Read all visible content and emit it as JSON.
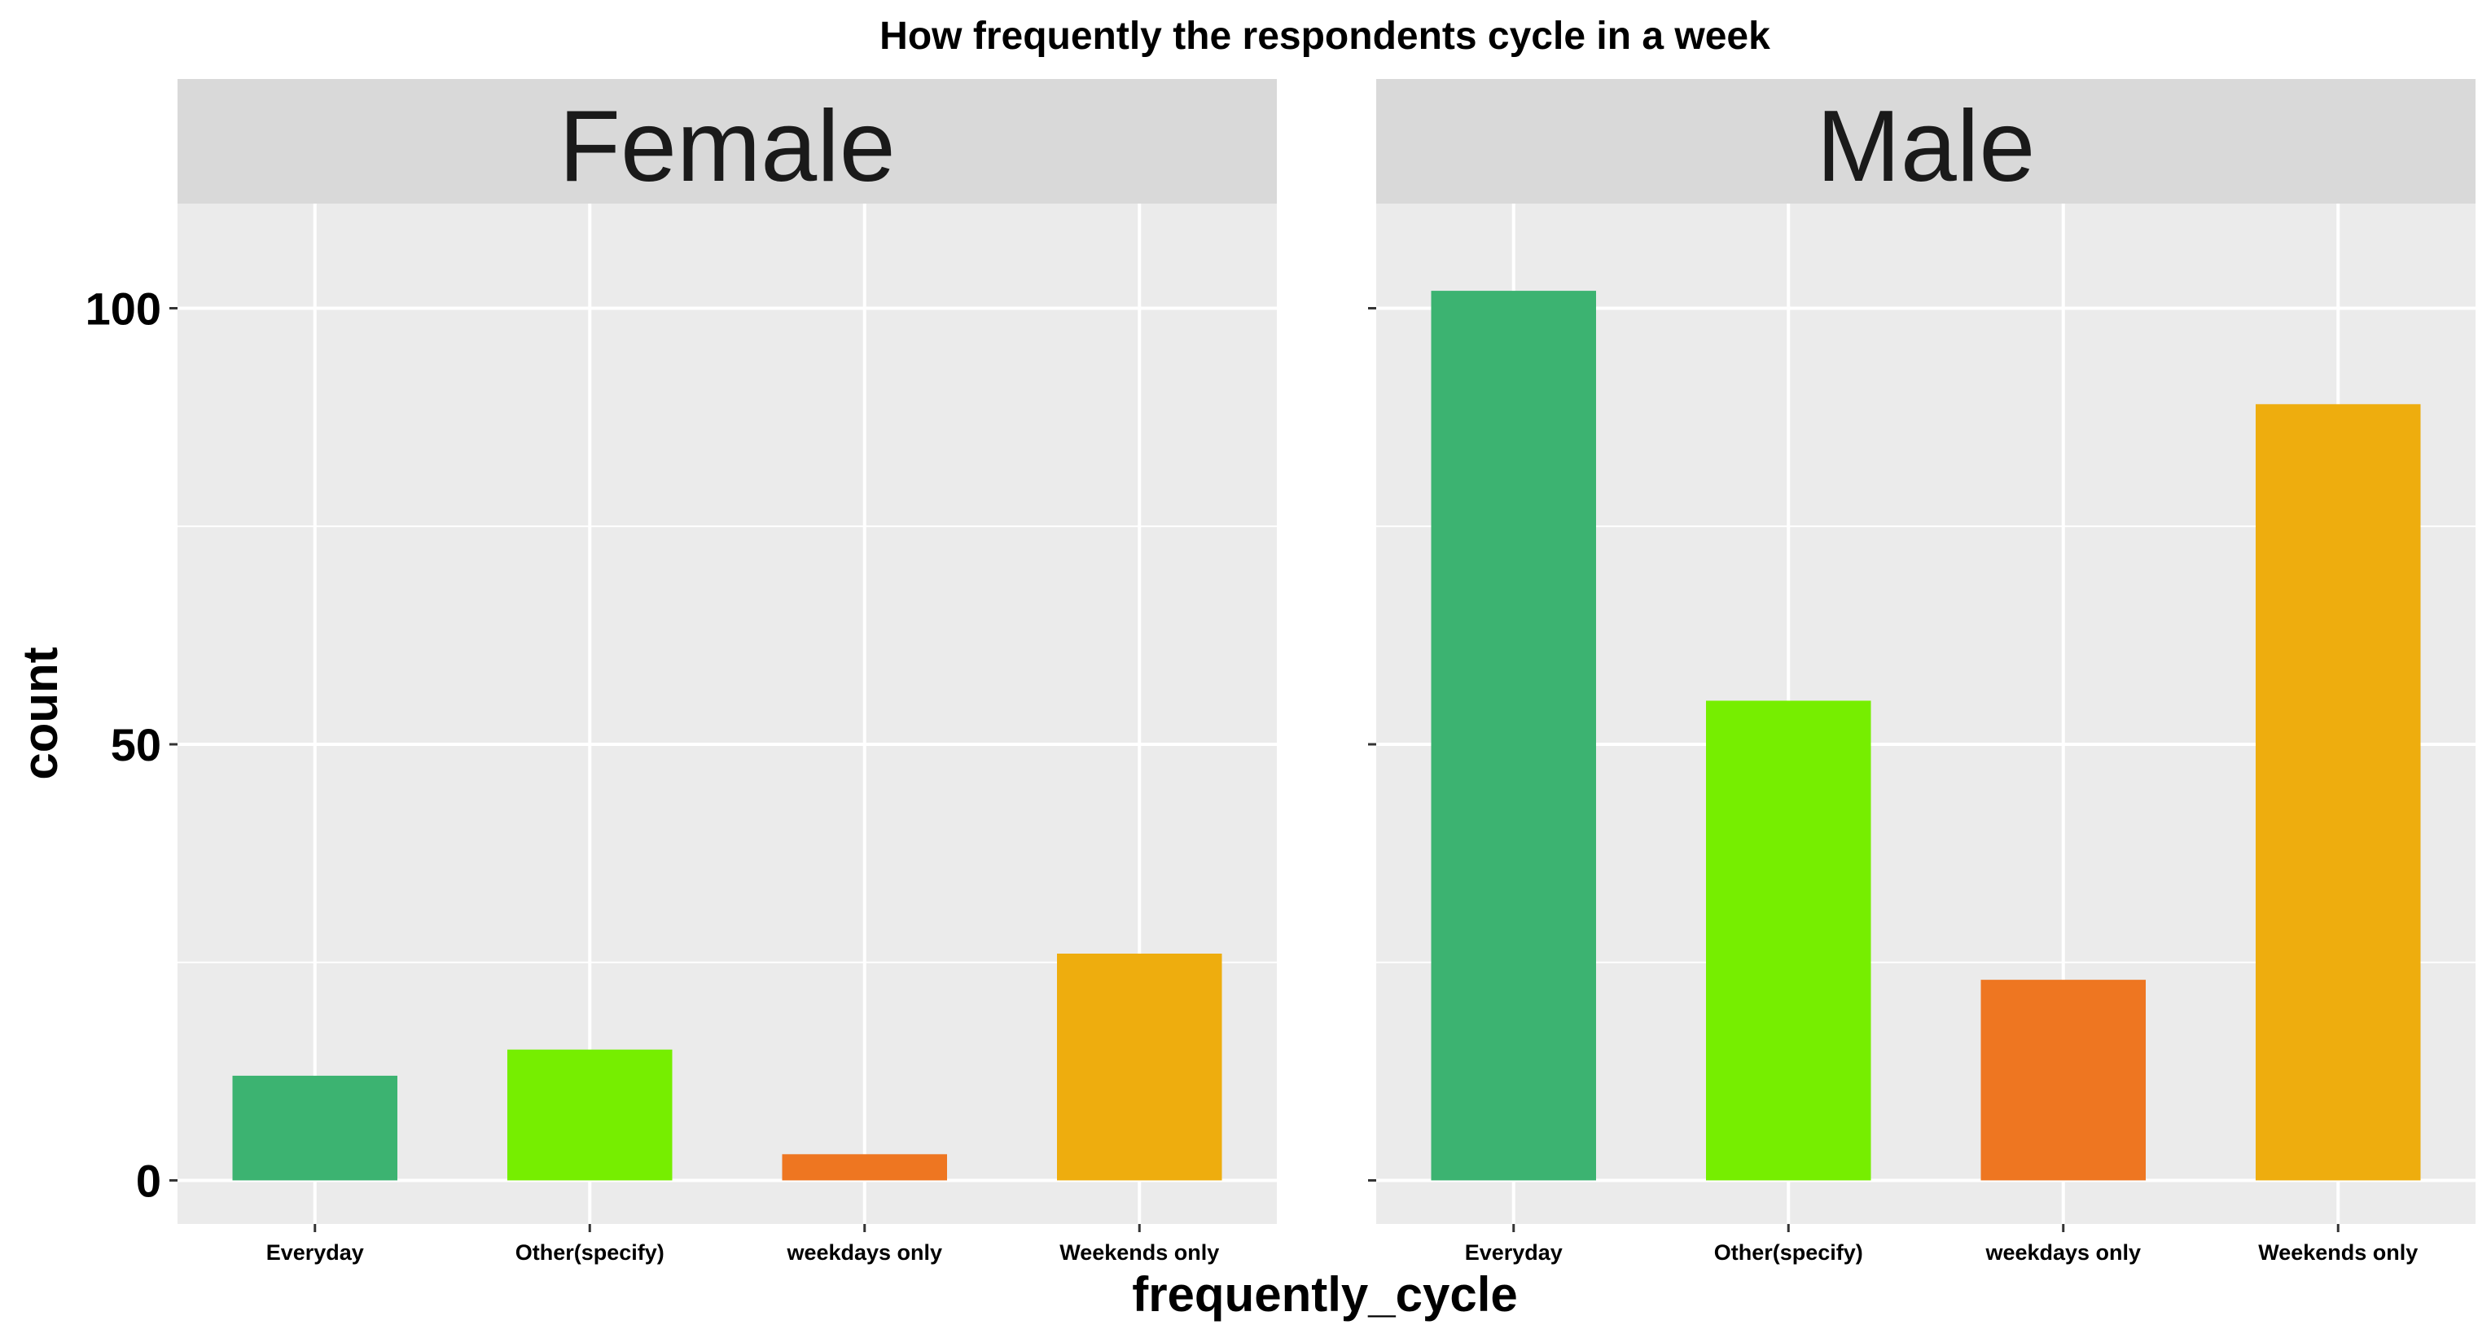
{
  "chart_data": {
    "type": "bar",
    "title": "How frequently the respondents cycle in a week",
    "xlabel": "frequently_cycle",
    "ylabel": "count",
    "ylim": [
      -5,
      112
    ],
    "yticks": [
      0,
      50,
      100
    ],
    "grid": true,
    "categories": [
      "Everyday",
      "Other(specify)",
      "weekdays only",
      "Weekends only"
    ],
    "colors": [
      "#3CB371",
      "#76EE00",
      "#EE7621",
      "#EEAD0E"
    ],
    "panel_background": "#EBEBEB",
    "strip_background": "#D9D9D9",
    "facets": [
      {
        "label": "Female",
        "values": [
          12,
          15,
          3,
          26
        ]
      },
      {
        "label": "Male",
        "values": [
          102,
          55,
          23,
          89
        ]
      }
    ]
  }
}
